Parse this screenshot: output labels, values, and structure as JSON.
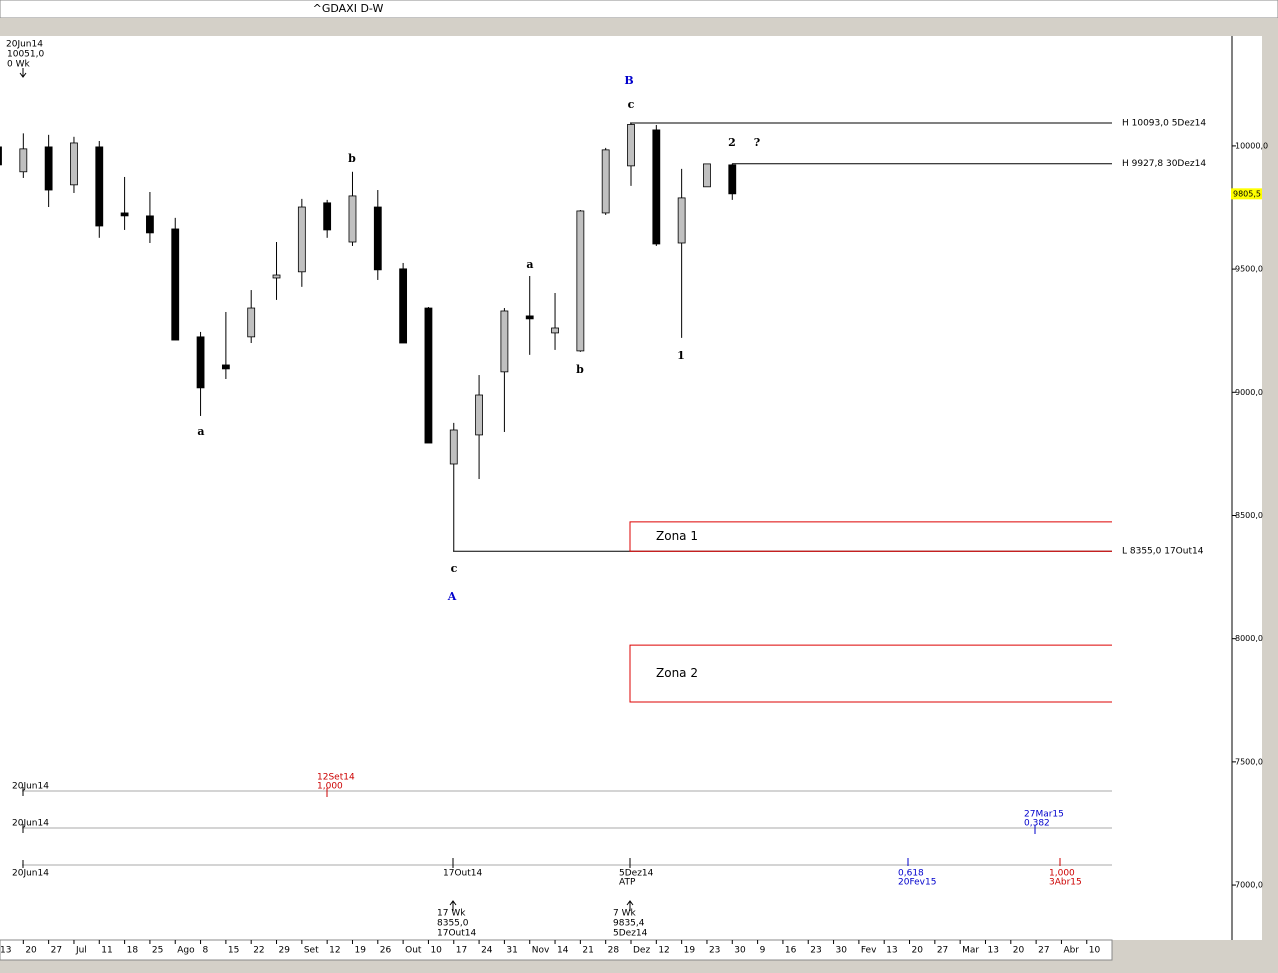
{
  "chart_data": {
    "type": "candlestick",
    "title": "^GDAXI D-W",
    "categories": [
      "13",
      "20",
      "27",
      "Jul",
      "11",
      "18",
      "25",
      "Ago",
      "8",
      "15",
      "22",
      "29",
      "Set",
      "12",
      "19",
      "26",
      "Out",
      "10",
      "17",
      "24",
      "31",
      "Nov",
      "14",
      "21",
      "28",
      "Dez",
      "12",
      "19",
      "23",
      "30",
      "9",
      "16",
      "23",
      "30",
      "Fev",
      "13",
      "20",
      "27",
      "Mar",
      "13",
      "20",
      "27",
      "Abr",
      "10"
    ],
    "open": [
      9996,
      9895,
      9996,
      9842,
      9996,
      9728,
      9716,
      9663,
      9225,
      9111,
      9225,
      9464,
      9489,
      9769,
      9610,
      9752,
      9501,
      9342,
      8709,
      8827,
      9083,
      9310,
      9241,
      9168,
      9728,
      9919,
      10065,
      9606,
      9834,
      9923,
      null,
      null,
      null,
      null,
      null,
      null,
      null,
      null,
      null,
      null,
      null,
      null,
      null,
      null
    ],
    "high": [
      10024,
      10051,
      10045,
      10037,
      10020,
      9874,
      9813,
      9708,
      9245,
      9326,
      9415,
      9610,
      9785,
      9781,
      9895,
      9821,
      9525,
      9346,
      8876,
      9070,
      9342,
      9472,
      9403,
      9740,
      9992,
      10093,
      10085,
      9907,
      9927,
      9927.8,
      null,
      null,
      null,
      null,
      null,
      null,
      null,
      null,
      null,
      null,
      null,
      null,
      null,
      null
    ],
    "low": [
      9903,
      9870,
      9752,
      9809,
      9627,
      9659,
      9606,
      9212,
      8904,
      9054,
      9200,
      9375,
      9428,
      9627,
      9594,
      9456,
      9200,
      8794,
      8355,
      8648,
      8839,
      9152,
      9172,
      9164,
      9720,
      9838,
      9594,
      9221,
      9834,
      9781,
      null,
      null,
      null,
      null,
      null,
      null,
      null,
      null,
      null,
      null,
      null,
      null,
      null,
      null
    ],
    "close": [
      9923,
      9988,
      9821,
      10012,
      9675,
      9716,
      9647,
      9212,
      9018,
      9095,
      9342,
      9476,
      9752,
      9659,
      9797,
      9497,
      9200,
      8794,
      8847,
      8989,
      9330,
      9298,
      9261,
      9736,
      9984,
      10087,
      9602,
      9789,
      9927,
      9805.5,
      null,
      null,
      null,
      null,
      null,
      null,
      null,
      null,
      null,
      null,
      null,
      null,
      null,
      null
    ],
    "up_color": "#c0c0c0",
    "down_color": "#000000",
    "ylim": [
      6777,
      10438
    ],
    "yticks": [
      {
        "value": 7000,
        "label": "7000,0"
      },
      {
        "value": 7500,
        "label": "7500,0"
      },
      {
        "value": 8000,
        "label": "8000,0"
      },
      {
        "value": 8500,
        "label": "8500,0"
      },
      {
        "value": 9000,
        "label": "9000,0"
      },
      {
        "value": 9500,
        "label": "9500,0"
      },
      {
        "value": 10000,
        "label": "10000,0"
      }
    ],
    "last_price": {
      "value": 9805.5,
      "label": "9805,5"
    },
    "levels": [
      {
        "value": 10093,
        "label": "H 10093,0 5Dez14"
      },
      {
        "value": 9927.8,
        "label": "H 9927,8 30Dez14"
      },
      {
        "value": 8355,
        "label": "L 8355,0 17Out14"
      }
    ],
    "zones": [
      {
        "label": "Zona 1",
        "top": 8474,
        "bottom": 8355
      },
      {
        "label": "Zona 2",
        "top": 7974,
        "bottom": 7743
      }
    ]
  },
  "annotations": [
    "20Jun14",
    "10051,0",
    "0 Wk",
    "B",
    "c",
    "2",
    "?",
    "b",
    "a",
    "a",
    "b",
    "1",
    "c",
    "A",
    "20Jun14",
    "12Set14",
    "1,000",
    "20Jun14",
    "27Mar15",
    "0,382",
    "20Jun14",
    "17Out14",
    "5Dez14",
    "ATP",
    "0,618",
    "20Fev15",
    "1,000",
    "3Abr15",
    "17 Wk",
    "8355,0",
    "17Out14",
    "7 Wk",
    "9835,4",
    "5Dez14"
  ]
}
